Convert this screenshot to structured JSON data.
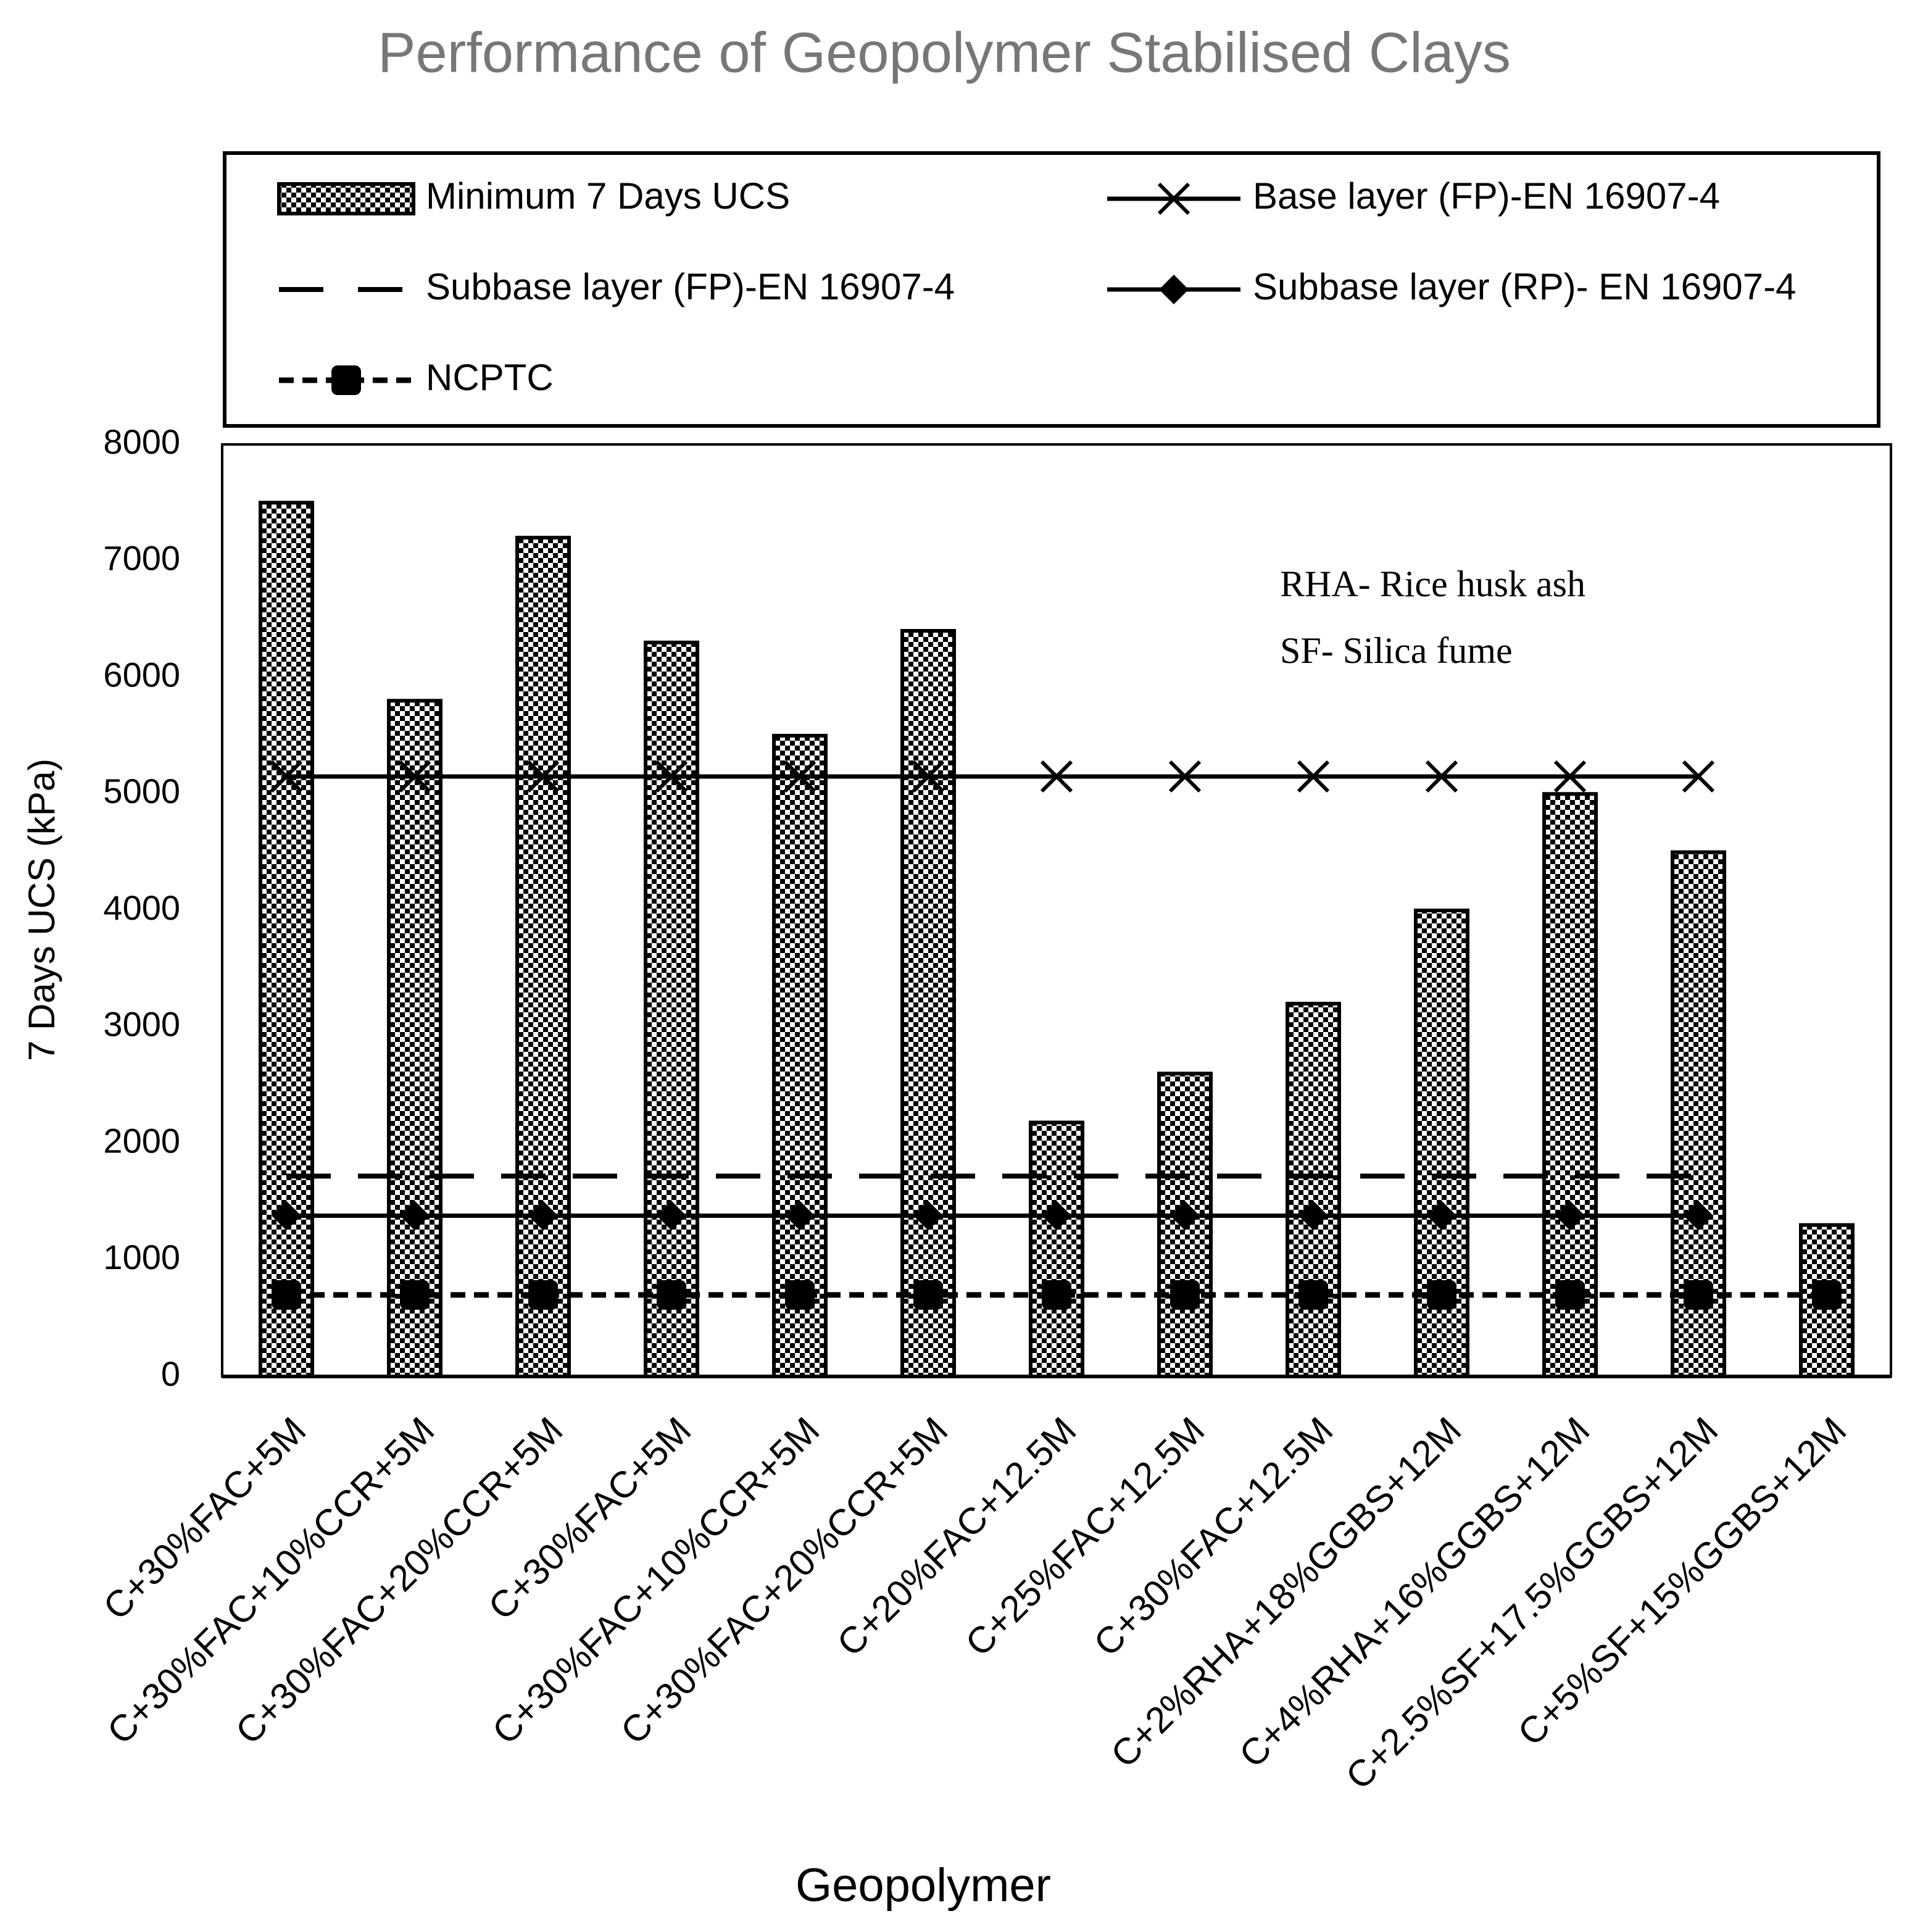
{
  "chart_data": {
    "type": "bar",
    "title": "Performance of Geopolymer Stabilised Clays",
    "x_label": "Geopolymer",
    "y_label": "7 Days UCS (kPa)",
    "annotations": [
      "RHA- Rice husk ash",
      "SF- Silica fume"
    ],
    "categories": [
      "C+30%FAC+5M",
      "C+30%FAC+10%CCR+5M",
      "C+30%FAC+20%CCR+5M",
      "C+30%FAC+5M",
      "C+30%FAC+10%CCR+5M",
      "C+30%FAC+20%CCR+5M",
      "C+20%FAC+12.5M",
      "C+25%FAC+12.5M",
      "C+30%FAC+12.5M",
      "C+2%RHA+18%GGBS+12M",
      "C+4%RHA+16%GGBS+12M",
      "C+2.5%SF+17.5%GGBS+12M",
      "C+5%SF+15%GGBS+12M"
    ],
    "series": [
      {
        "name": "Minimum 7 Days UCS",
        "type": "bar",
        "color": "#000000",
        "values": [
          7500,
          5800,
          7200,
          6300,
          5500,
          6400,
          2180,
          2600,
          3200,
          4000,
          5000,
          4500,
          1300
        ]
      },
      {
        "name": "Base layer (FP)-EN 16907-4",
        "type": "line",
        "color": "#000000",
        "line_style": "solid",
        "marker": "x",
        "values": [
          5150,
          5150,
          5150,
          5150,
          5150,
          5150,
          5150,
          5150,
          5150,
          5150,
          5150,
          5150,
          null
        ]
      },
      {
        "name": "Subbase layer (FP)-EN 16907-4",
        "type": "line",
        "color": "#000000",
        "line_style": "dashed",
        "marker": "none",
        "values": [
          1720,
          1720,
          1720,
          1720,
          1720,
          1720,
          1720,
          1720,
          1720,
          1720,
          1720,
          1720,
          null
        ]
      },
      {
        "name": "Subbase layer (RP)- EN 16907-4",
        "type": "line",
        "color": "#000000",
        "line_style": "solid",
        "marker": "diamond",
        "values": [
          1380,
          1380,
          1380,
          1380,
          1380,
          1380,
          1380,
          1380,
          1380,
          1380,
          1380,
          1380,
          null
        ]
      },
      {
        "name": "NCPTC",
        "type": "line",
        "color": "#000000",
        "line_style": "dotted",
        "marker": "square",
        "values": [
          700,
          700,
          700,
          700,
          700,
          700,
          700,
          700,
          700,
          700,
          700,
          700,
          700
        ]
      }
    ],
    "ylim": [
      0,
      8000
    ],
    "yticks": [
      0,
      1000,
      2000,
      3000,
      4000,
      5000,
      6000,
      7000,
      8000
    ],
    "grid": false
  }
}
